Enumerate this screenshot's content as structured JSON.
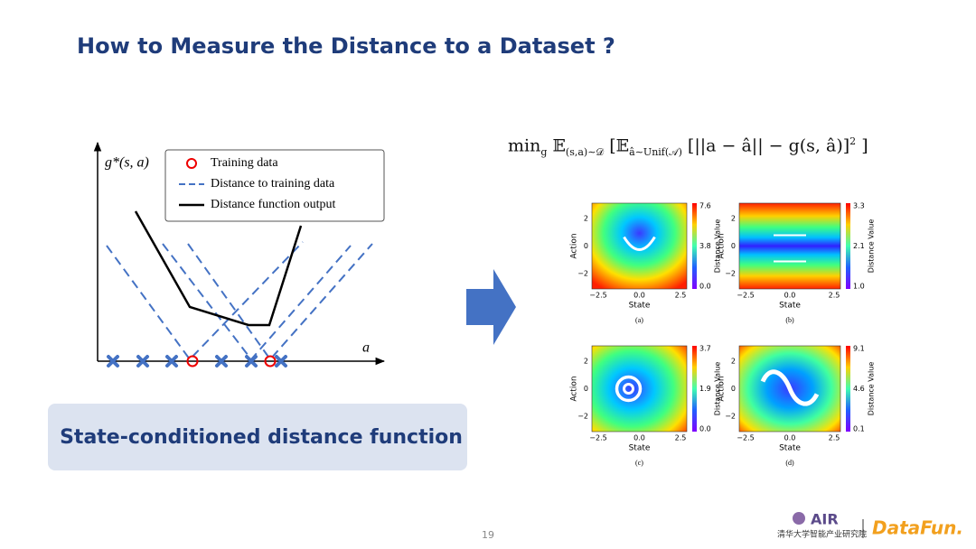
{
  "title": "How to Measure the Distance to a Dataset ?",
  "diagram": {
    "y_label": "g*(s, a)",
    "x_label": "a",
    "legend": [
      "Training data",
      "Distance to training data",
      "Distance function output"
    ]
  },
  "callout": "State-conditioned distance function",
  "formula": {
    "parts": [
      {
        "text": "min",
        "sub": "g"
      },
      {
        "text": "𝔼",
        "sub": "(s,a)∼𝒟"
      },
      {
        "text": "[𝔼",
        "sub": "â∼Unif(𝒜)"
      },
      {
        "text": "[||a − â|| − g(s, â)]",
        "sup": "2"
      },
      {
        "text": "]"
      }
    ]
  },
  "heatmaps": {
    "x_label": "State",
    "y_label": "Action",
    "colorbar_label": "Distance Value",
    "x_ticks": [
      "−2.5",
      "0.0",
      "2.5"
    ],
    "y_ticks": [
      "2",
      "0",
      "−2"
    ],
    "panels": [
      {
        "caption": "(a)",
        "colorbar_ticks": [
          "7.6",
          "3.8",
          "0.0"
        ]
      },
      {
        "caption": "(b)",
        "colorbar_ticks": [
          "3.3",
          "2.1",
          "1.0"
        ]
      },
      {
        "caption": "(c)",
        "colorbar_ticks": [
          "3.7",
          "1.9",
          "0.0"
        ]
      },
      {
        "caption": "(d)",
        "colorbar_ticks": [
          "9.1",
          "4.6",
          "0.1"
        ]
      }
    ]
  },
  "footer": {
    "page": "19",
    "logo_air": "AIR",
    "logo_org": "清华大学智能产业研究院",
    "logo_datafun": "DataFun."
  }
}
